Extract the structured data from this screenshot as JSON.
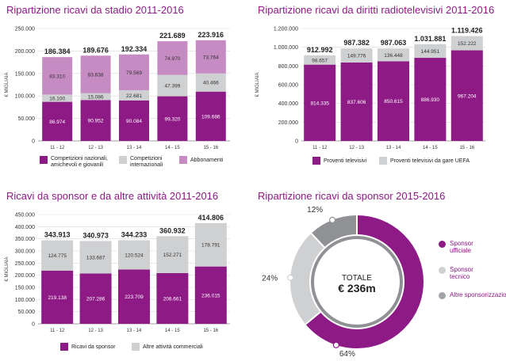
{
  "colors": {
    "purple": "#8e1a86",
    "light_purple": "#c58bc2",
    "light_gray": "#cfd0d2",
    "gray": "#a1a3a6",
    "dark_gray": "#8f9194"
  },
  "chart_data": [
    {
      "id": "stadio",
      "type": "bar",
      "title": "Ripartizione ricavi da stadio 2011-2016",
      "ylabel": "€ MIGLIAIA",
      "ylim": [
        0,
        250000
      ],
      "yticks": [
        "0",
        "50.000",
        "100.000",
        "150.000",
        "200.000",
        "250.000"
      ],
      "categories": [
        "11 - 12",
        "12 - 13",
        "13 - 14",
        "14 - 15",
        "15 - 16"
      ],
      "totals": [
        "186.384",
        "189.676",
        "192.334",
        "221.689",
        "223.916"
      ],
      "series": [
        {
          "name": "Competizioni nazionali, amichevoli e giovanili",
          "values": [
            86974,
            90952,
            90084,
            99320,
            109686
          ],
          "labels": [
            "86.974",
            "90.952",
            "90.084",
            "99.320",
            "109.686"
          ]
        },
        {
          "name": "Competizioni internazionali",
          "values": [
            16100,
            15086,
            22681,
            47399,
            40466
          ],
          "labels": [
            "16.100",
            "15.086",
            "22.681",
            "47.399",
            "40.466"
          ]
        },
        {
          "name": "Abbonamenti",
          "values": [
            83310,
            83638,
            79569,
            74970,
            73764
          ],
          "labels": [
            "83.310",
            "83.638",
            "79.569",
            "74.970",
            "73.764"
          ]
        }
      ]
    },
    {
      "id": "tv",
      "type": "bar",
      "title": "Ripartizione ricavi da diritti radiotelevisivi 2011-2016",
      "ylabel": "€ MIGLIAIA",
      "ylim": [
        0,
        1200000
      ],
      "yticks": [
        "0",
        "200.000",
        "400.000",
        "600.000",
        "800.000",
        "1.000.000",
        "1.200.000"
      ],
      "categories": [
        "11 - 12",
        "12 - 13",
        "13 - 14",
        "14 - 15",
        "15 - 16"
      ],
      "totals": [
        "912.992",
        "987.382",
        "987.063",
        "1.031.881",
        "1.119.426"
      ],
      "series": [
        {
          "name": "Proventi televisivi",
          "values": [
            814335,
            837606,
            850615,
            886930,
            967204
          ],
          "labels": [
            "814.335",
            "837.606",
            "850.615",
            "886.930",
            "967.204"
          ]
        },
        {
          "name": "Proventi televisivi da gare UEFA",
          "values": [
            98657,
            149776,
            136448,
            144951,
            152222
          ],
          "labels": [
            "98.657",
            "149.776",
            "136.448",
            "144.951",
            "152.222"
          ]
        }
      ]
    },
    {
      "id": "sponsor",
      "type": "bar",
      "title": "Ricavi da sponsor e da altre attività 2011-2016",
      "ylabel": "€ MIGLIAIA",
      "ylim": [
        0,
        450000
      ],
      "yticks": [
        "0",
        "50.000",
        "100.000",
        "150.000",
        "200.000",
        "250.000",
        "300.000",
        "350.000",
        "400.000",
        "450.000"
      ],
      "categories": [
        "11 - 12",
        "12 - 13",
        "13 - 14",
        "14 - 15",
        "15 - 16"
      ],
      "totals": [
        "343.913",
        "340.973",
        "344.233",
        "360.932",
        "414.806"
      ],
      "series": [
        {
          "name": "Ricavi da sponsor",
          "values": [
            219138,
            207286,
            223709,
            208661,
            236015
          ],
          "labels": [
            "219.138",
            "207.286",
            "223.709",
            "208.661",
            "236.015"
          ]
        },
        {
          "name": "Altre attività commerciali",
          "values": [
            124775,
            133687,
            120524,
            152271,
            178791
          ],
          "labels": [
            "124.775",
            "133.687",
            "120.524",
            "152.271",
            "178.791"
          ]
        }
      ]
    },
    {
      "id": "pie",
      "type": "pie",
      "title": "Ripartizione ricavi da sponsor 2015-2016",
      "center_label": "TOTALE",
      "center_value": "€ 236m",
      "slices": [
        {
          "name": "Sponsor ufficiale",
          "value": 64,
          "label": "64%"
        },
        {
          "name": "Sponsor tecnico",
          "value": 24,
          "label": "24%"
        },
        {
          "name": "Altre sponsorizzazioni",
          "value": 12,
          "label": "12%"
        }
      ]
    }
  ]
}
